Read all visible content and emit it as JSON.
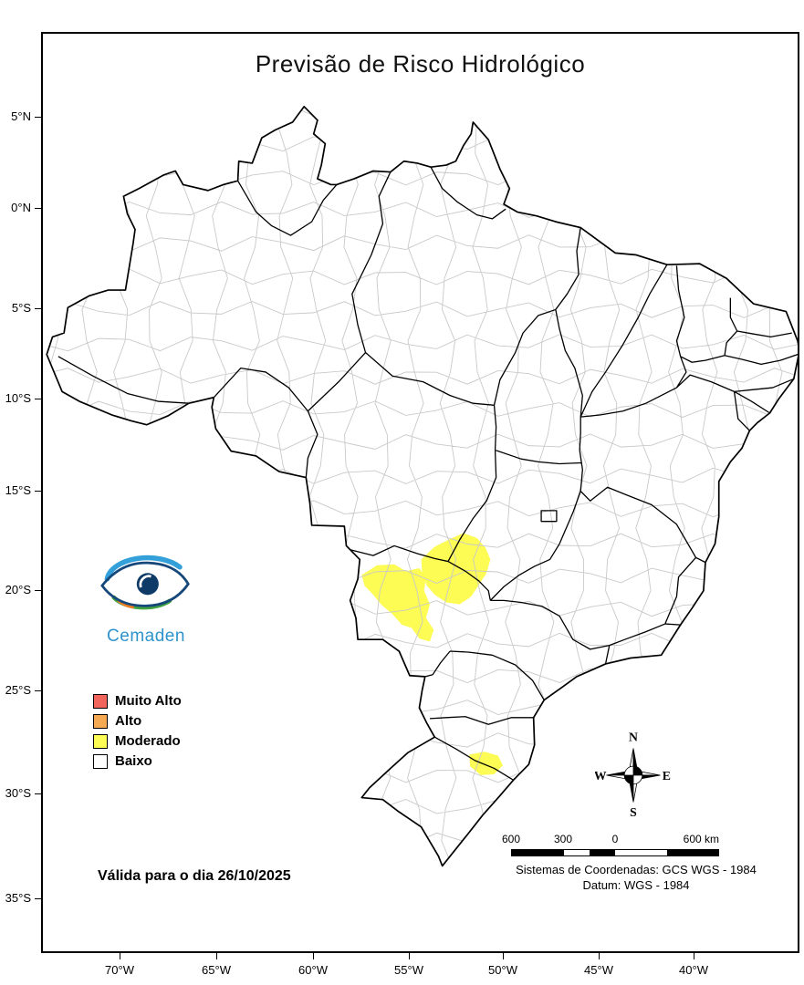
{
  "title": "Previsão de Risco Hidrológico",
  "logo": {
    "wordmark": "Cemaden"
  },
  "legend": {
    "items": [
      {
        "label": "Muito Alto",
        "color": "#F2655D"
      },
      {
        "label": "Alto",
        "color": "#F5A952"
      },
      {
        "label": "Moderado",
        "color": "#FCFC54"
      },
      {
        "label": "Baixo",
        "color": "#FFFFFF"
      }
    ]
  },
  "validity": {
    "text": "Válida para o dia 26/10/2025"
  },
  "compass": {
    "n": "N",
    "e": "E",
    "s": "S",
    "w": "W"
  },
  "scale_bar": {
    "tick_labels": [
      "600",
      "300",
      "0"
    ],
    "end_label": "600 km"
  },
  "projection": {
    "line1": "Sistemas de Coordenadas: GCS WGS - 1984",
    "line2": "Datum: WGS - 1984"
  },
  "axes": {
    "latitude_ticks": [
      "5°N",
      "0°N",
      "5°S",
      "10°S",
      "15°S",
      "20°S",
      "25°S",
      "30°S",
      "35°S"
    ],
    "longitude_ticks": [
      "70°W",
      "65°W",
      "60°W",
      "55°W",
      "50°W",
      "45°W",
      "40°W"
    ]
  },
  "map": {
    "highlight_level": "Moderado",
    "highlight_color": "#FCFC54",
    "state_border_color": "#000000",
    "municipality_border_color": "#C9C9C9"
  }
}
